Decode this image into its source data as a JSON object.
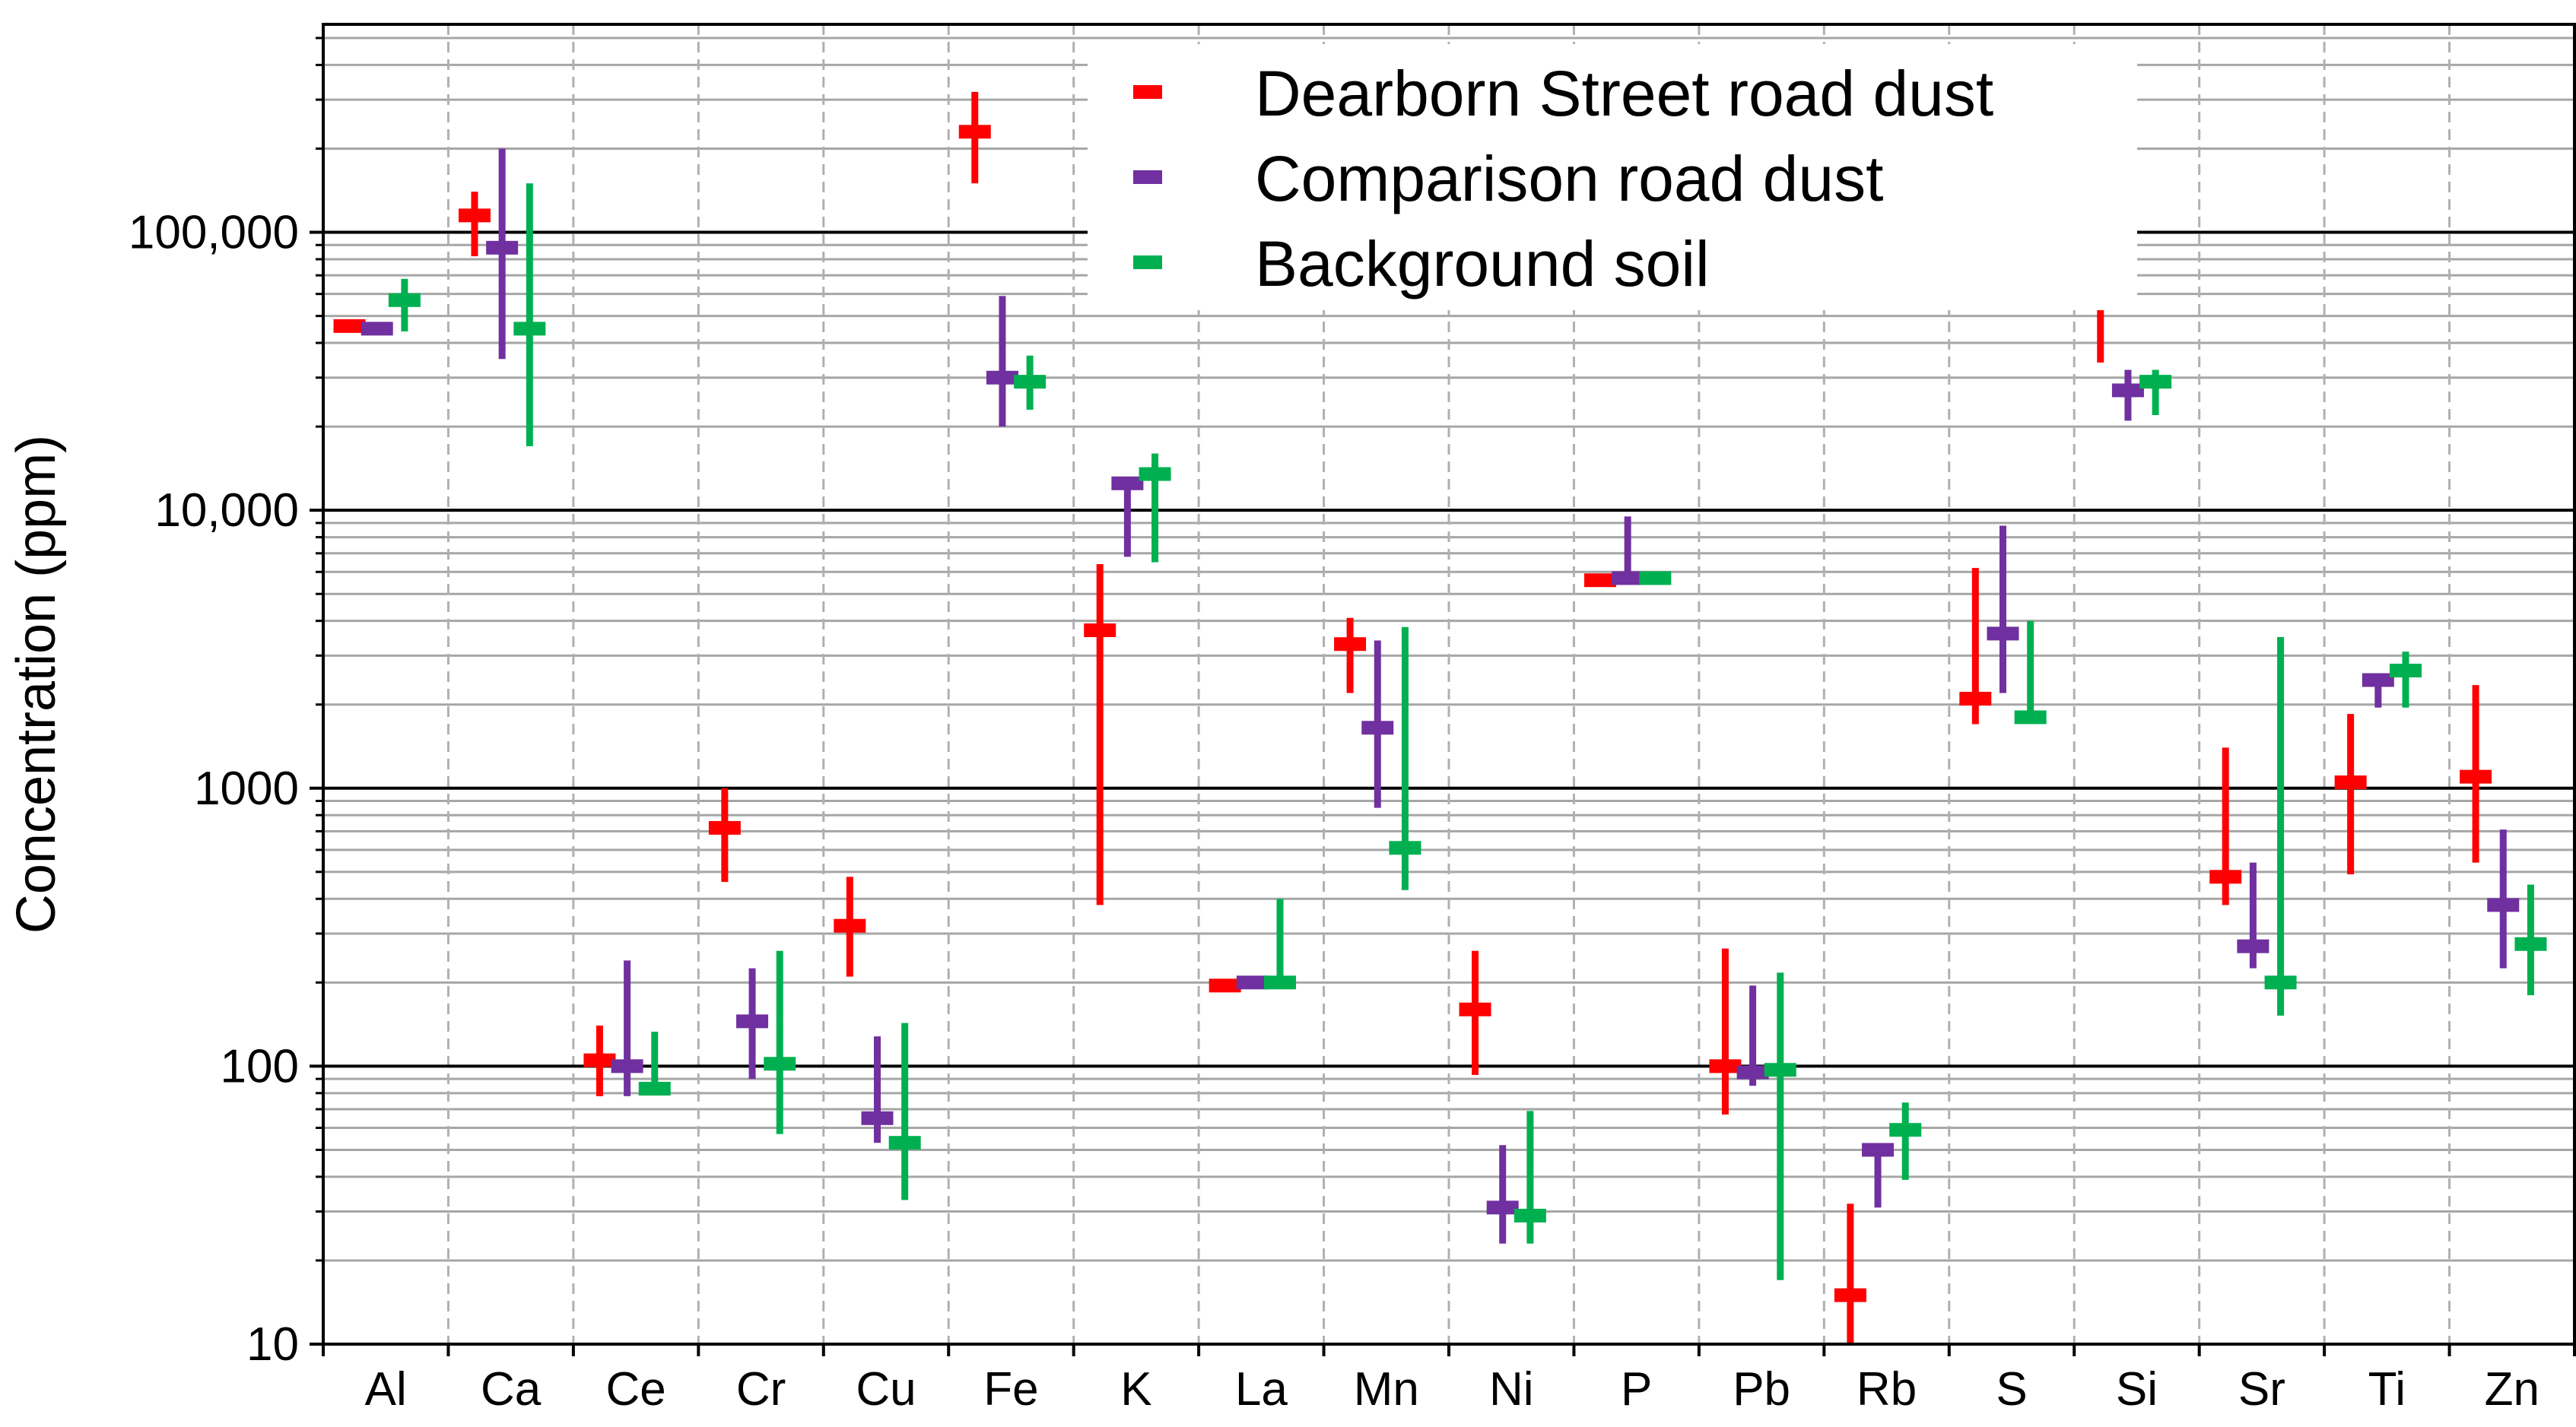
{
  "chart_data": {
    "type": "scatter",
    "description_style": "log-scale range plot: marker at central value, vertical bar from low to high",
    "ylabel": "Concentration (ppm)",
    "xlabel": "",
    "y_scale": "log",
    "ylim": [
      10,
      560000
    ],
    "y_tick_labels": [
      "10",
      "100",
      "1000",
      "10,000",
      "100,000"
    ],
    "y_tick_values": [
      10,
      100,
      1000,
      10000,
      100000
    ],
    "grid": {
      "major_horizontal": true,
      "minor_horizontal": true,
      "vertical_dashed": true
    },
    "legend_position": "top-center",
    "categories": [
      "Al",
      "Ca",
      "Ce",
      "Cr",
      "Cu",
      "Fe",
      "K",
      "La",
      "Mn",
      "Ni",
      "P",
      "Pb",
      "Rb",
      "S",
      "Si",
      "Sr",
      "Ti",
      "Zn"
    ],
    "series": [
      {
        "name": "Dearborn Street road dust",
        "color": "#ff0000",
        "values": [
          46000,
          115000,
          105,
          720,
          320,
          230000,
          3700,
          195,
          3300,
          160,
          5600,
          100,
          15,
          2100,
          110000,
          480,
          1050,
          1100
        ],
        "low": [
          46000,
          82000,
          78,
          460,
          210,
          150000,
          380,
          195,
          2200,
          93,
          5600,
          67,
          10,
          1700,
          34000,
          380,
          490,
          540
        ],
        "high": [
          46000,
          140000,
          140,
          1000,
          480,
          320000,
          6400,
          195,
          4100,
          260,
          5600,
          265,
          32,
          6200,
          170000,
          1400,
          1850,
          2350
        ]
      },
      {
        "name": "Comparison road dust",
        "color": "#7030a0",
        "values": [
          45000,
          88000,
          100,
          145,
          65,
          30000,
          12500,
          200,
          1650,
          31,
          5700,
          95,
          50,
          3600,
          27000,
          270,
          2450,
          380
        ],
        "low": [
          43000,
          35000,
          78,
          90,
          53,
          20000,
          6800,
          200,
          850,
          23,
          5600,
          85,
          31,
          2200,
          21000,
          225,
          1950,
          225
        ],
        "high": [
          47000,
          200000,
          240,
          225,
          128,
          59000,
          13000,
          200,
          3400,
          52,
          9500,
          195,
          52,
          8800,
          32000,
          540,
          2550,
          710
        ]
      },
      {
        "name": "Background soil",
        "color": "#00b050",
        "values": [
          57000,
          45000,
          83,
          102,
          53,
          29000,
          13500,
          200,
          610,
          29,
          5700,
          97,
          59,
          1800,
          29000,
          200,
          2650,
          275
        ],
        "low": [
          44000,
          17000,
          80,
          57,
          33,
          23000,
          6500,
          200,
          430,
          23,
          5600,
          17,
          39,
          1800,
          22000,
          152,
          1950,
          180
        ],
        "high": [
          68000,
          150000,
          133,
          260,
          143,
          36000,
          16000,
          400,
          3800,
          69,
          5700,
          217,
          74,
          4000,
          32000,
          3500,
          3100,
          450
        ]
      }
    ]
  }
}
